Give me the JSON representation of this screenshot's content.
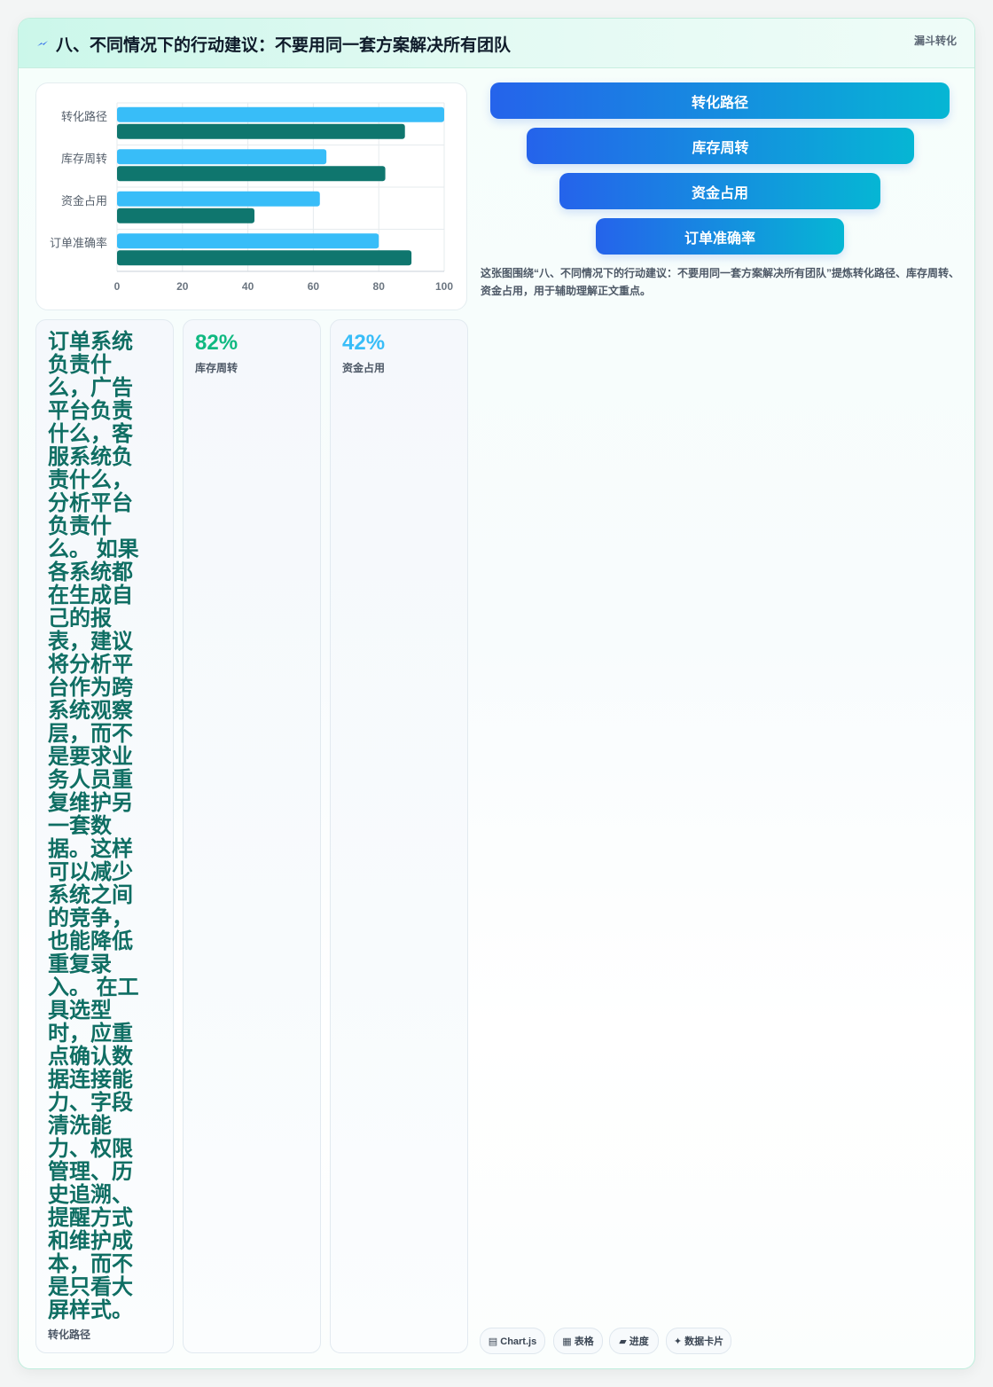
{
  "header": {
    "icon": "lightning-icon",
    "title": "八、不同情况下的行动建议：不要用同一套方案解决所有团队",
    "tag": "漏斗转化"
  },
  "chart_data": {
    "type": "bar",
    "orientation": "horizontal",
    "categories": [
      "转化路径",
      "库存周转",
      "资金占用",
      "订单准确率"
    ],
    "series": [
      {
        "values": [
          100,
          64,
          62,
          80
        ],
        "color": "#38bdf8"
      },
      {
        "values": [
          88,
          82,
          42,
          90
        ],
        "color": "#0f766e"
      }
    ],
    "xticks": [
      0,
      20,
      40,
      60,
      80,
      100
    ],
    "xlim": [
      0,
      100
    ],
    "grid": true,
    "legend": "none"
  },
  "funnel": {
    "items": [
      "转化路径",
      "库存周转",
      "资金占用",
      "订单准确率"
    ]
  },
  "caption": "这张图围绕“八、不同情况下的行动建议：不要用同一套方案解决所有团队”提炼转化路径、库存周转、资金占用，用于辅助理解正文重点。",
  "cards": [
    {
      "value": "订单系统负责什么，广告平台负责什么，客服系统负责什么，分析平台负责什么。 如果各系统都在生成自己的报表，建议将分析平台作为跨系统观察层，而不是要求业务人员重复维护另一套数据。这样可以减少系统之间的竞争，也能降低重复录入。 在工具选型时，应重点确认数据连接能力、字段清洗能力、权限管理、历史追溯、提醒方式和维护成本，而不是只看大屏样式。",
      "label": "转化路径",
      "color": "#0f6e63"
    },
    {
      "value": "82%",
      "label": "库存周转",
      "color": "#10b981"
    },
    {
      "value": "42%",
      "label": "资金占用",
      "color": "#38bdf8"
    }
  ],
  "chips": [
    "▤ Chart.js",
    "▦ 表格",
    "▰ 进度",
    "✦ 数据卡片"
  ]
}
